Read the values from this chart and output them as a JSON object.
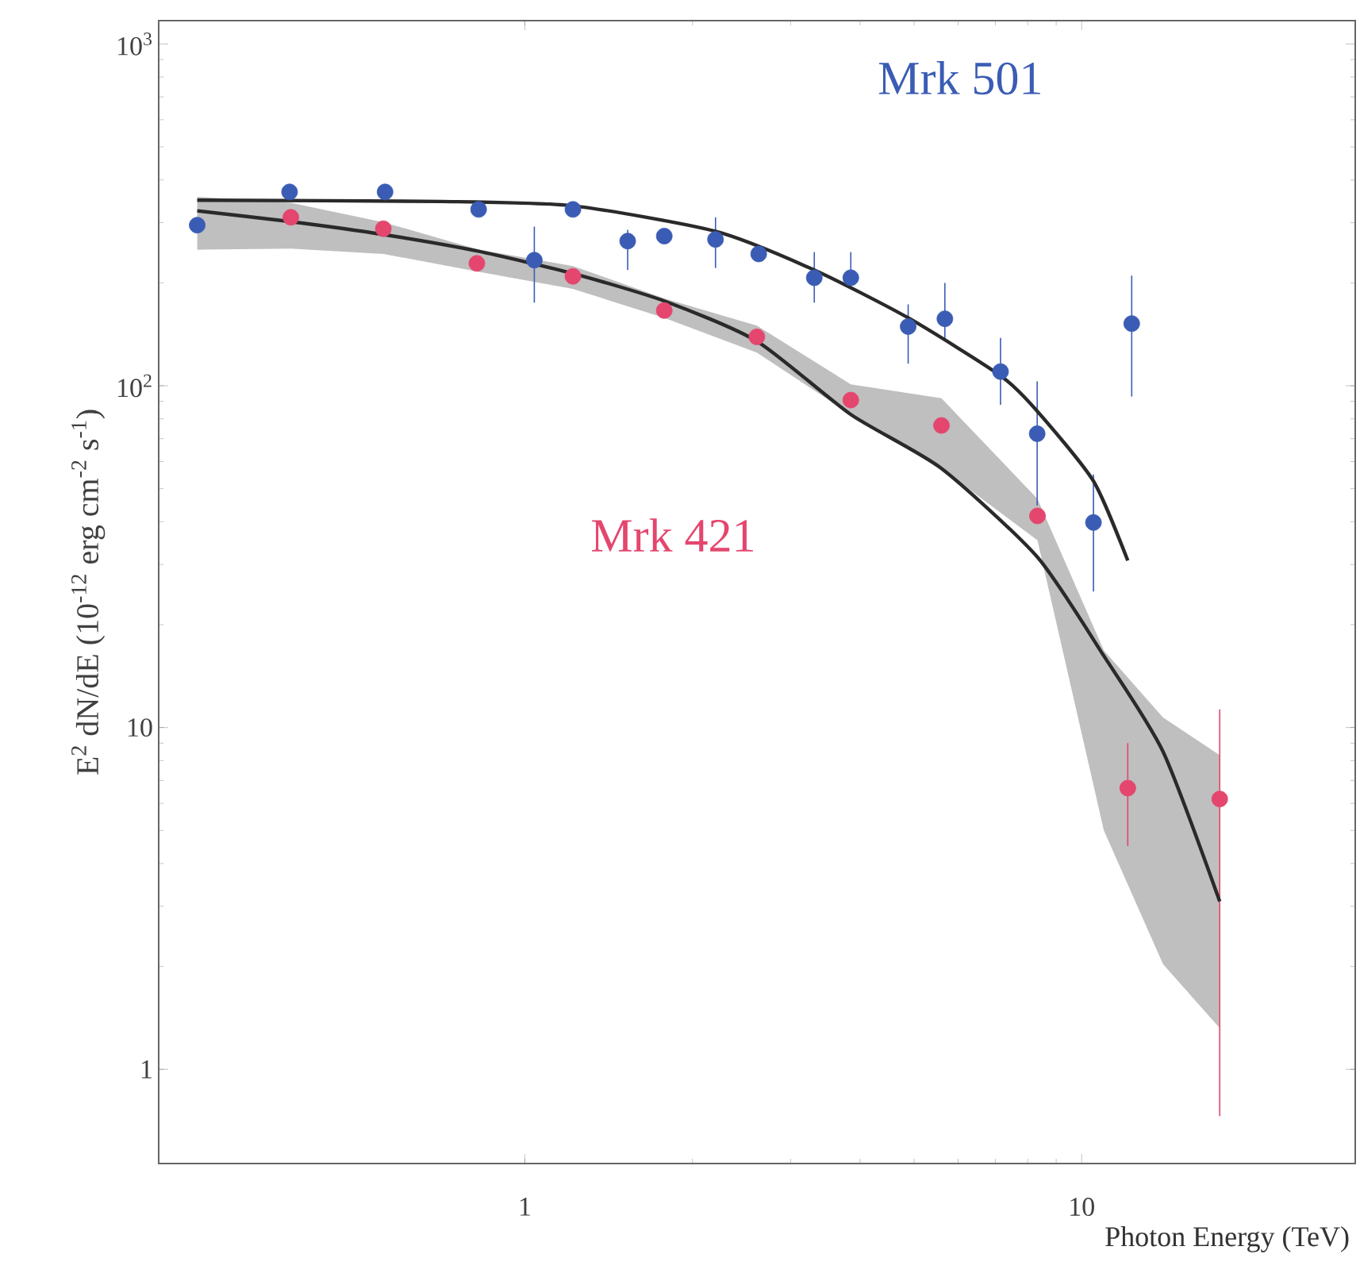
{
  "chart_data": {
    "type": "scatter",
    "log": "xy",
    "marker": "circle",
    "line_style": "solid",
    "xlabel": "Photon Energy (TeV)",
    "ylabel": "E$^{2}$ dN/dE (10$^{-12}$ erg cm$^{-2}$ s$^{-1}$)",
    "xlim": [
      0.22,
      31
    ],
    "ylim": [
      0.53,
      1170
    ],
    "xticks": [
      1,
      10
    ],
    "yticks": [
      1,
      10,
      {
        "value": 100,
        "label": "10$^{2}$"
      },
      {
        "value": 1000,
        "label": "10$^{3}$"
      }
    ],
    "series": [
      {
        "name": "Mrk 501",
        "color": "#3a5cb4",
        "x": [
          0.258,
          0.378,
          0.561,
          0.826,
          1.04,
          1.22,
          1.53,
          1.78,
          2.2,
          2.63,
          3.31,
          3.85,
          4.88,
          5.68,
          7.15,
          8.32,
          10.5,
          12.3
        ],
        "values": [
          295,
          369,
          369,
          328,
          233,
          328,
          265,
          274,
          268,
          243,
          207,
          207,
          149,
          157,
          110,
          72.4,
          39.8,
          152
        ],
        "errors": [
          null,
          null,
          null,
          null,
          [
            175,
            292
          ],
          null,
          [
            218,
            286
          ],
          null,
          [
            221,
            311
          ],
          null,
          [
            175,
            246
          ],
          [
            194,
            246
          ],
          [
            116,
            173
          ],
          [
            135,
            200
          ],
          [
            88,
            138
          ],
          [
            44.6,
            103
          ],
          [
            25,
            55
          ],
          [
            93,
            210
          ]
        ]
      },
      {
        "name": "Mrk 421",
        "color": "#e4466e",
        "x": [
          0.38,
          0.557,
          0.82,
          1.22,
          1.78,
          2.61,
          3.85,
          5.6,
          8.33,
          12.1,
          17.7
        ],
        "values": [
          311,
          288,
          228,
          209,
          166,
          139,
          90.8,
          76.5,
          41.6,
          6.65,
          6.18
        ],
        "errors": [
          null,
          null,
          null,
          null,
          null,
          null,
          null,
          null,
          null,
          [
            4.5,
            9.0
          ],
          [
            0.73,
            11.3
          ]
        ]
      },
      {
        "type": "line",
        "marker": "none",
        "color": "#2a2a2a",
        "x": [
          0.258,
          0.71,
          1.22,
          2.2,
          3.31,
          4.88,
          7.15,
          8.32,
          10.5,
          12.1
        ],
        "values": [
          349,
          346,
          336,
          283,
          218,
          158,
          107,
          84.3,
          52.6,
          30.8
        ]
      },
      {
        "type": "line",
        "marker": "none",
        "color": "#2a2a2a",
        "x": [
          0.258,
          0.38,
          0.557,
          0.82,
          1.22,
          1.78,
          2.61,
          3.85,
          5.6,
          8.33,
          10.96,
          14.0,
          17.7
        ],
        "values": [
          325,
          302,
          277,
          248,
          213,
          177,
          135,
          82.4,
          57.3,
          31.5,
          16.2,
          8.5,
          3.1
        ],
        "lower": [
          250,
          252,
          243,
          216,
          192,
          158,
          125,
          82.4,
          57.3,
          35.3,
          5.0,
          2.03,
          1.32
        ],
        "upper": [
          357,
          343,
          301,
          251,
          224,
          180,
          150,
          101,
          91.9,
          46.7,
          16.8,
          10.7,
          8.3
        ]
      }
    ]
  }
}
